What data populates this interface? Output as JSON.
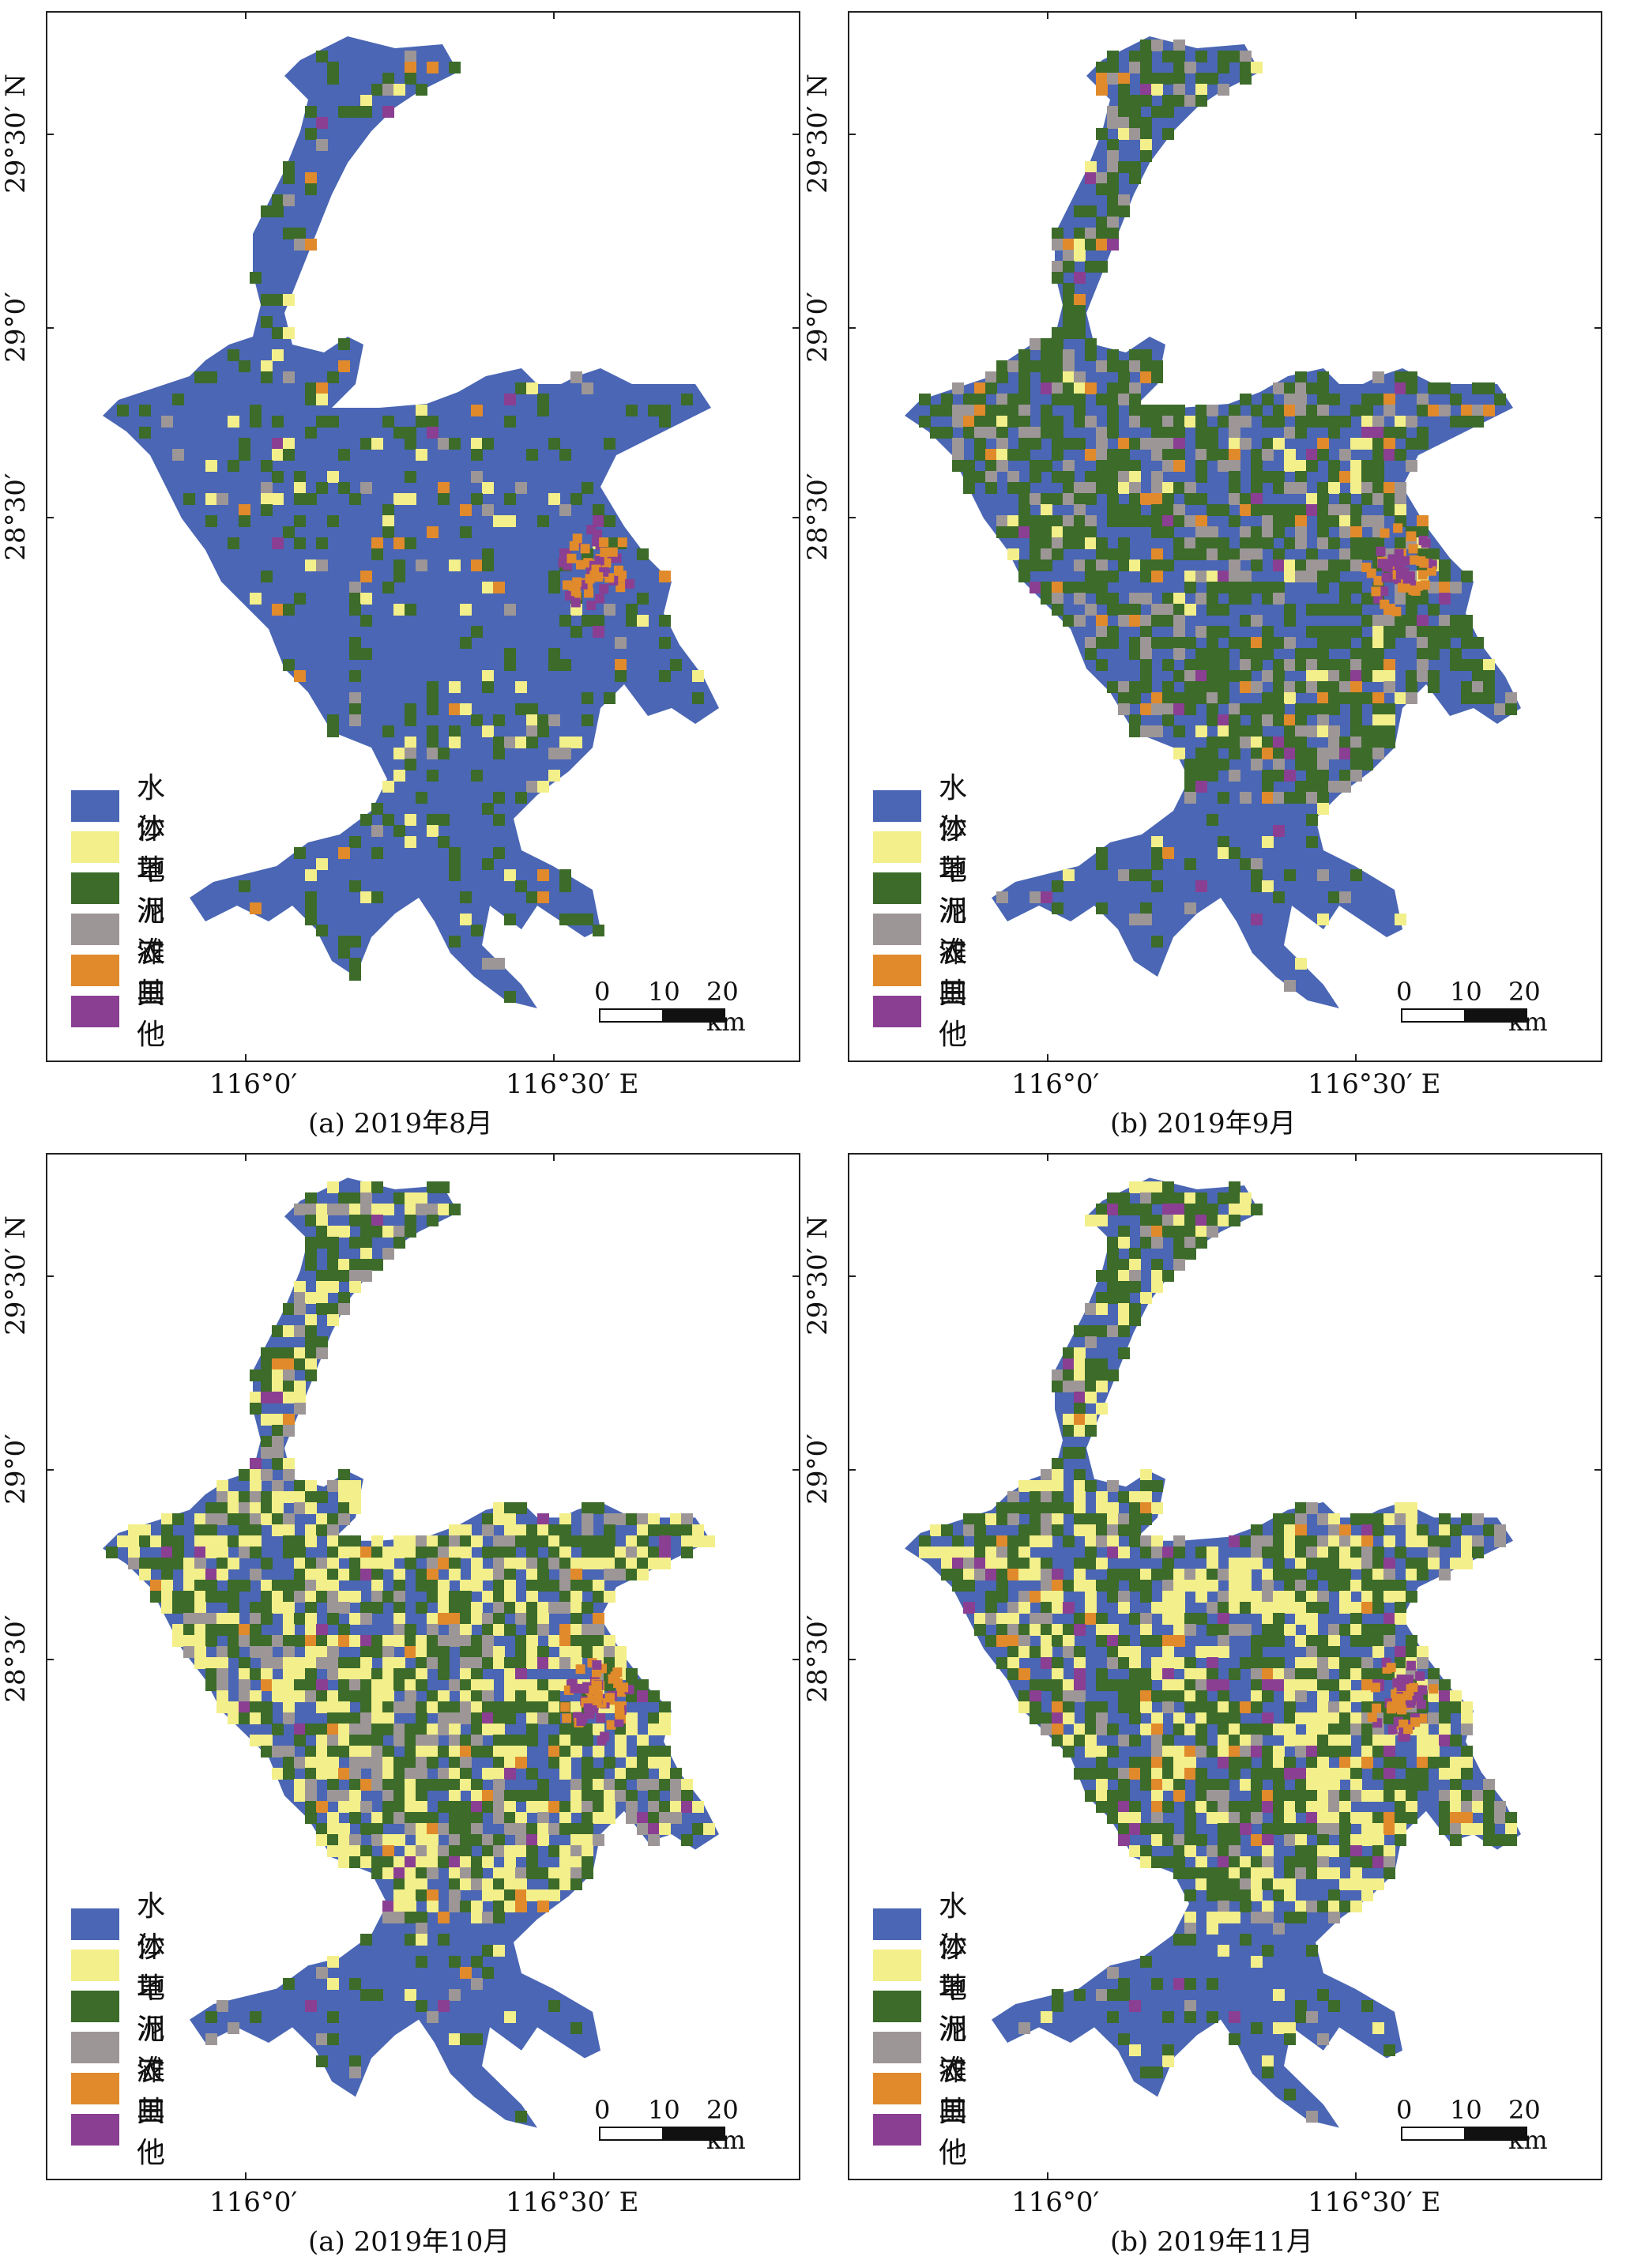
{
  "legend": [
    {
      "label": "水体",
      "color": "#4a66b4"
    },
    {
      "label": "沙地",
      "color": "#f3ef8a"
    },
    {
      "label": "草洲",
      "color": "#3c6b2a"
    },
    {
      "label": "泥滩",
      "color": "#9d9697"
    },
    {
      "label": "农田",
      "color": "#e08a2c"
    },
    {
      "label": "其他",
      "color": "#8a3f92"
    }
  ],
  "axes": {
    "lon_left": "116°0′",
    "lon_right": "116°30′ E",
    "lat_top": "29°30′ N",
    "lat_mid": "29°0′",
    "lat_bottom": "28°30′"
  },
  "scale": {
    "t0": "0",
    "t1": "10",
    "t2": "20 km"
  },
  "panels": [
    {
      "caption": "(a) 2019年8月",
      "dominant": "water"
    },
    {
      "caption": "(b) 2019年9月",
      "dominant": "grass"
    },
    {
      "caption": "(a) 2019年10月",
      "dominant": "sand"
    },
    {
      "caption": "(b) 2019年11月",
      "dominant": "mixed"
    }
  ]
}
